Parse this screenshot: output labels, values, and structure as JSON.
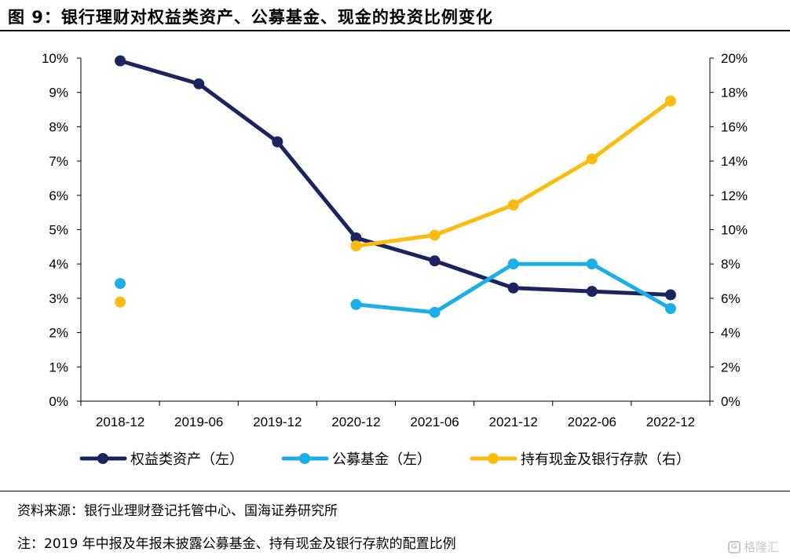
{
  "figure_title": "图 9：银行理财对权益类资产、公募基金、现金的投资比例变化",
  "source_text": "资料来源：银行业理财登记托管中心、国海证券研究所",
  "note_text": "注：2019 年中报及年报未披露公募基金、持有现金及银行存款的配置比例",
  "watermark": {
    "logo": "G",
    "text": "格隆汇"
  },
  "chart_data": {
    "type": "line",
    "title": "",
    "xlabel": "",
    "categories": [
      "2018-12",
      "2019-06",
      "2019-12",
      "2020-12",
      "2021-06",
      "2021-12",
      "2022-06",
      "2022-12"
    ],
    "y_left": {
      "min": 0,
      "max": 10,
      "step": 1,
      "format": "%"
    },
    "y_right": {
      "min": 0,
      "max": 20,
      "step": 2,
      "format": "%"
    },
    "grid": false,
    "legend_position": "bottom",
    "series": [
      {
        "name": "权益类资产（左）",
        "axis": "left",
        "color": "#1a2560",
        "values": [
          9.92,
          9.25,
          7.56,
          4.76,
          4.09,
          3.3,
          3.2,
          3.1
        ]
      },
      {
        "name": "公募基金（左）",
        "axis": "left",
        "color": "#1caee6",
        "values": [
          3.43,
          null,
          null,
          2.82,
          2.59,
          4.0,
          4.0,
          2.7
        ]
      },
      {
        "name": "持有现金及银行存款（右）",
        "axis": "right",
        "color": "#fcbb0f",
        "values": [
          5.78,
          null,
          null,
          9.05,
          9.68,
          11.44,
          14.12,
          17.5
        ]
      }
    ]
  }
}
